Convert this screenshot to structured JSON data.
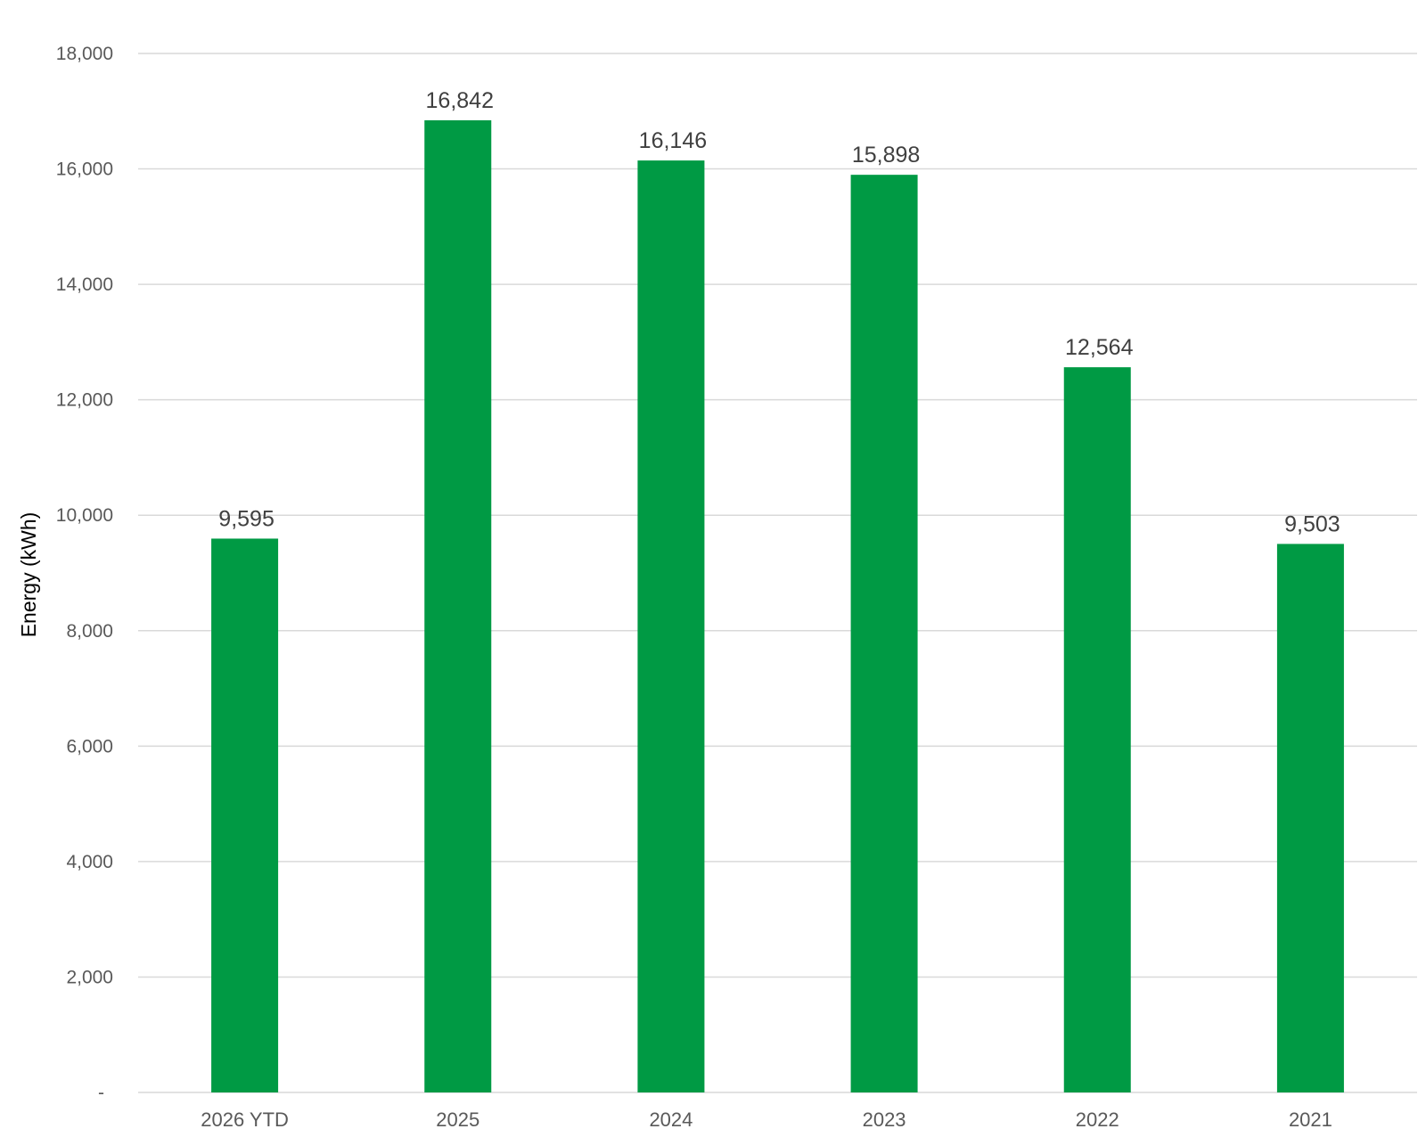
{
  "chart_data": {
    "type": "bar",
    "title": "",
    "xlabel": "",
    "ylabel": "Energy (kWh)",
    "categories": [
      "2026 YTD",
      "2025",
      "2024",
      "2023",
      "2022",
      "2021"
    ],
    "values": [
      9595,
      16842,
      16146,
      15898,
      12564,
      9503
    ],
    "data_labels": [
      "9,595",
      "16,842",
      "16,146",
      "15,898",
      "12,564",
      "9,503"
    ],
    "ylim": [
      0,
      18000
    ],
    "yticks": [
      0,
      2000,
      4000,
      6000,
      8000,
      10000,
      12000,
      14000,
      16000,
      18000
    ],
    "ytick_labels": [
      "-",
      "2,000",
      "4,000",
      "6,000",
      "8,000",
      "10,000",
      "12,000",
      "14,000",
      "16,000",
      "18,000"
    ],
    "grid": true,
    "legend": "none",
    "colors": {
      "bar": "#009a44",
      "grid": "#d9d9d9",
      "tick_text": "#595959",
      "label_text": "#404040"
    }
  }
}
